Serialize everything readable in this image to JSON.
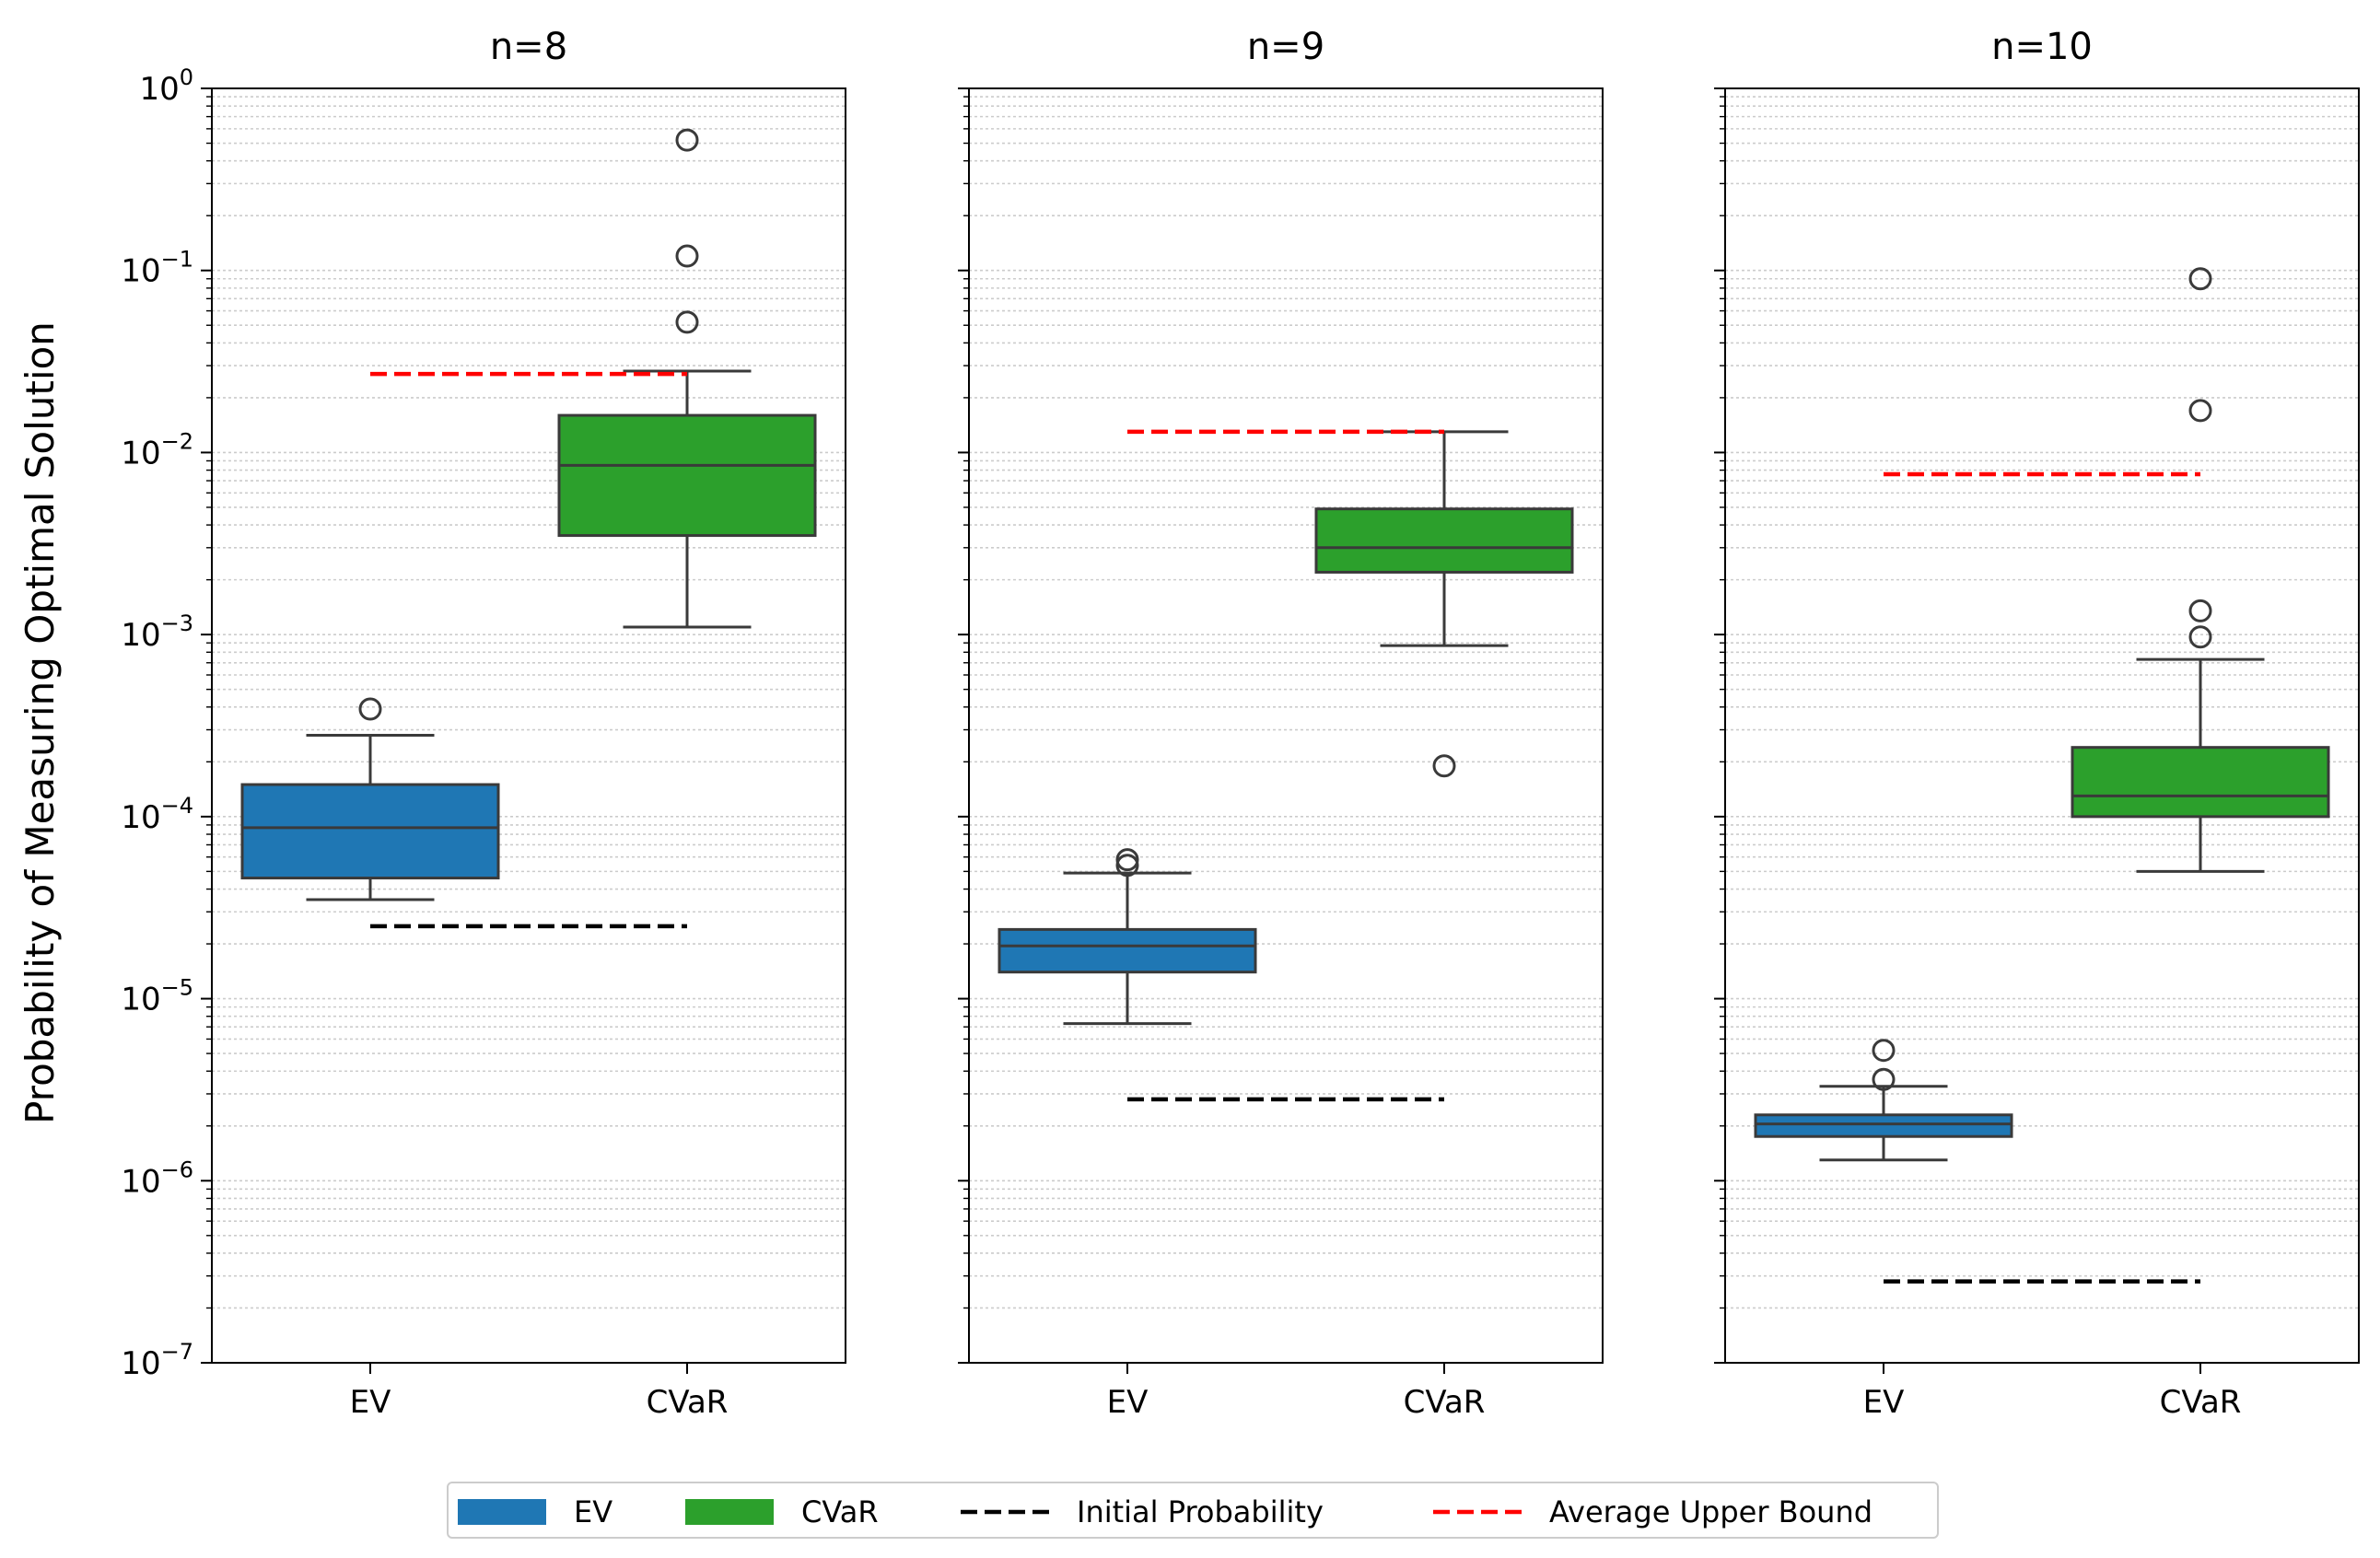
{
  "chart_data": {
    "type": "box",
    "ylabel": "Probability of Measuring Optimal Solution",
    "yscale": "log",
    "ylim": [
      1e-07,
      1
    ],
    "y_tick_exponents": [
      0,
      -1,
      -2,
      -3,
      -4,
      -5,
      -6,
      -7
    ],
    "grid": "y minor dotted",
    "categories": [
      "EV",
      "CVaR"
    ],
    "colors": {
      "EV": "#1f77b4",
      "CVaR": "#2ca02c",
      "initial": "#000000",
      "upper": "#ff0000"
    },
    "panels": [
      {
        "title": "n=8",
        "boxes": [
          {
            "category": "EV",
            "whisker_low": 3.5e-05,
            "q1": 4.6e-05,
            "median": 8.7e-05,
            "q3": 0.00015,
            "whisker_high": 0.00028,
            "outliers": [
              0.00039
            ]
          },
          {
            "category": "CVaR",
            "whisker_low": 0.0011,
            "q1": 0.0035,
            "median": 0.0085,
            "q3": 0.016,
            "whisker_high": 0.028,
            "outliers": [
              0.052,
              0.12,
              0.52
            ]
          }
        ],
        "initial_probability": 2.5e-05,
        "average_upper_bound": 0.027
      },
      {
        "title": "n=9",
        "boxes": [
          {
            "category": "EV",
            "whisker_low": 7.3e-06,
            "q1": 1.4e-05,
            "median": 1.95e-05,
            "q3": 2.4e-05,
            "whisker_high": 4.9e-05,
            "outliers": [
              5.4e-05,
              5.8e-05
            ]
          },
          {
            "category": "CVaR",
            "whisker_low": 0.00087,
            "q1": 0.0022,
            "median": 0.003,
            "q3": 0.0049,
            "whisker_high": 0.013,
            "outliers": [
              0.00019
            ]
          }
        ],
        "initial_probability": 2.8e-06,
        "average_upper_bound": 0.013
      },
      {
        "title": "n=10",
        "boxes": [
          {
            "category": "EV",
            "whisker_low": 1.3e-06,
            "q1": 1.75e-06,
            "median": 2.05e-06,
            "q3": 2.3e-06,
            "whisker_high": 3.3e-06,
            "outliers": [
              3.6e-06,
              5.2e-06
            ]
          },
          {
            "category": "CVaR",
            "whisker_low": 5e-05,
            "q1": 0.0001,
            "median": 0.00013,
            "q3": 0.00024,
            "whisker_high": 0.00073,
            "outliers": [
              0.00097,
              0.00135,
              0.017,
              0.09
            ]
          }
        ],
        "initial_probability": 2.8e-07,
        "average_upper_bound": 0.0076
      }
    ],
    "legend": {
      "location": "lower center",
      "entries": [
        {
          "label": "EV",
          "kind": "patch",
          "color": "#1f77b4"
        },
        {
          "label": "CVaR",
          "kind": "patch",
          "color": "#2ca02c"
        },
        {
          "label": "Initial Probability",
          "kind": "dashed",
          "color": "#000000"
        },
        {
          "label": "Average Upper Bound",
          "kind": "dashed",
          "color": "#ff0000"
        }
      ]
    }
  }
}
